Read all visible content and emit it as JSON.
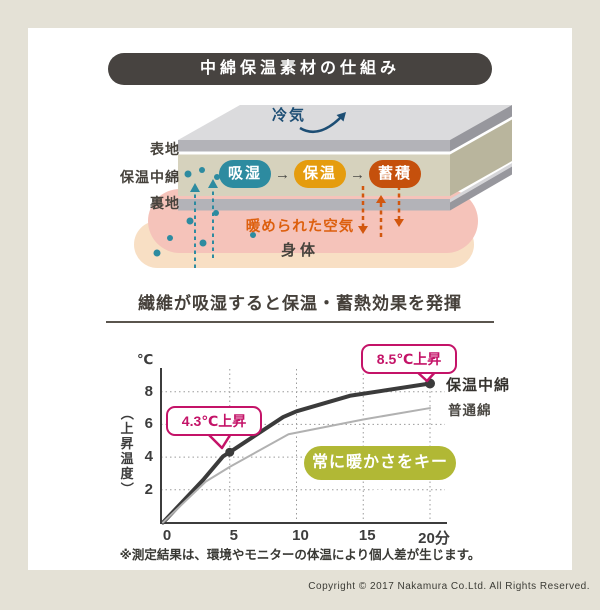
{
  "title": "中綿保温素材の仕組み",
  "colors": {
    "background": "#e4e1d6",
    "panel": "#ffffff",
    "banner": "#474340",
    "teal": "#2d8ba0",
    "amber": "#e59c0e",
    "burnt_orange": "#c5500c",
    "orange_text": "#dd5f0d",
    "navy_cold_air": "#1d4e74",
    "magenta_callout": "#c41368",
    "badge_green": "#b1b835",
    "salmon_air": "#f5c3ba",
    "peach_body": "#f8dfc4",
    "fabric_beige": "#d6d2bd",
    "plate_gray": "#b3b3b8"
  },
  "diagram": {
    "cold_air_label": "冷気",
    "layer_labels": [
      "表地",
      "保温中綿",
      "裏地"
    ],
    "process_pills": [
      {
        "label": "吸湿",
        "color": "#2d8ba0"
      },
      {
        "label": "保温",
        "color": "#e59c0e"
      },
      {
        "label": "蓄積",
        "color": "#c5500c"
      }
    ],
    "process_arrow": "→",
    "warmed_air_label": "暖められた空気",
    "body_label": "身体"
  },
  "subtitle": "繊維が吸湿すると保温・蓄熱効果を発揮",
  "chart_data": {
    "type": "line",
    "ylabel_unit": "℃",
    "ylabel": "（上昇温度）",
    "xlabel": "",
    "x_ticks": [
      "0",
      "5",
      "10",
      "15",
      "20分"
    ],
    "y_ticks": [
      2,
      4,
      6,
      8
    ],
    "xlim": [
      0,
      21
    ],
    "ylim": [
      0,
      9
    ],
    "grid": true,
    "legend_position": "right",
    "series": [
      {
        "name": "保温中綿",
        "color": "#3b3b3b",
        "width": 4,
        "x": [
          0,
          3,
          4.5,
          5,
          9,
          10,
          14,
          20
        ],
        "y": [
          0,
          2.6,
          4.05,
          4.3,
          6.45,
          6.8,
          7.75,
          8.5
        ]
      },
      {
        "name": "普通綿",
        "color": "#b1b1b1",
        "width": 2,
        "x": [
          0,
          3.2,
          5,
          9.4,
          15,
          20
        ],
        "y": [
          0,
          2.5,
          3.4,
          5.4,
          6.3,
          7.0
        ]
      }
    ],
    "annotations": [
      {
        "text": "8.5℃上昇",
        "x": 20,
        "y": 8.5,
        "marker_r": 5
      },
      {
        "text": "4.3℃上昇",
        "x": 5,
        "y": 4.3,
        "marker_r": 4.5
      }
    ],
    "badge": "常に暖かさをキープ"
  },
  "footnote": "※測定結果は、環境やモニターの体温により個人差が生じます。",
  "copyright": "Copyright © 2017 Nakamura Co.Ltd. All Rights Reserved."
}
